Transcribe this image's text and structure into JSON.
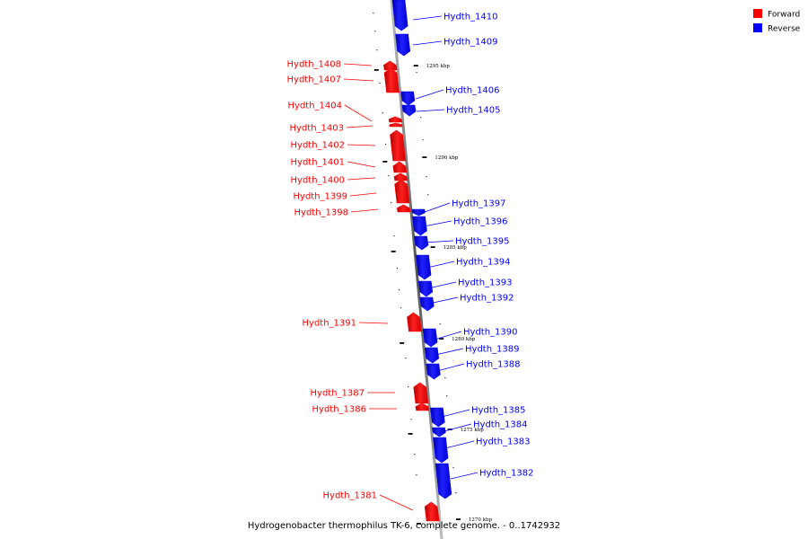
{
  "legend": {
    "forward": {
      "label": "Forward",
      "color": "#ff0000"
    },
    "reverse": {
      "label": "Reverse",
      "color": "#0000ff"
    }
  },
  "caption": "Hydrogenobacter thermophilus TK-6, complete genome. - 0..1742932",
  "axis_ticks": [
    "1295 kbp",
    "1290 kbp",
    "1285 kbp",
    "1280 kbp",
    "1275 kbp",
    "1270 kbp"
  ],
  "genes": [
    {
      "label": "Hydth_1410",
      "strand": "reverse"
    },
    {
      "label": "Hydth_1409",
      "strand": "reverse"
    },
    {
      "label": "Hydth_1408",
      "strand": "forward"
    },
    {
      "label": "Hydth_1407",
      "strand": "forward"
    },
    {
      "label": "Hydth_1406",
      "strand": "reverse"
    },
    {
      "label": "Hydth_1405",
      "strand": "reverse"
    },
    {
      "label": "Hydth_1404",
      "strand": "forward"
    },
    {
      "label": "Hydth_1403",
      "strand": "forward"
    },
    {
      "label": "Hydth_1402",
      "strand": "forward"
    },
    {
      "label": "Hydth_1401",
      "strand": "forward"
    },
    {
      "label": "Hydth_1400",
      "strand": "forward"
    },
    {
      "label": "Hydth_1399",
      "strand": "forward"
    },
    {
      "label": "Hydth_1398",
      "strand": "forward"
    },
    {
      "label": "Hydth_1397",
      "strand": "reverse"
    },
    {
      "label": "Hydth_1396",
      "strand": "reverse"
    },
    {
      "label": "Hydth_1395",
      "strand": "reverse"
    },
    {
      "label": "Hydth_1394",
      "strand": "reverse"
    },
    {
      "label": "Hydth_1393",
      "strand": "reverse"
    },
    {
      "label": "Hydth_1392",
      "strand": "reverse"
    },
    {
      "label": "Hydth_1391",
      "strand": "forward"
    },
    {
      "label": "Hydth_1390",
      "strand": "reverse"
    },
    {
      "label": "Hydth_1389",
      "strand": "reverse"
    },
    {
      "label": "Hydth_1388",
      "strand": "reverse"
    },
    {
      "label": "Hydth_1387",
      "strand": "forward"
    },
    {
      "label": "Hydth_1386",
      "strand": "forward"
    },
    {
      "label": "Hydth_1385",
      "strand": "reverse"
    },
    {
      "label": "Hydth_1384",
      "strand": "reverse"
    },
    {
      "label": "Hydth_1383",
      "strand": "reverse"
    },
    {
      "label": "Hydth_1382",
      "strand": "reverse"
    },
    {
      "label": "Hydth_1381",
      "strand": "forward"
    }
  ]
}
